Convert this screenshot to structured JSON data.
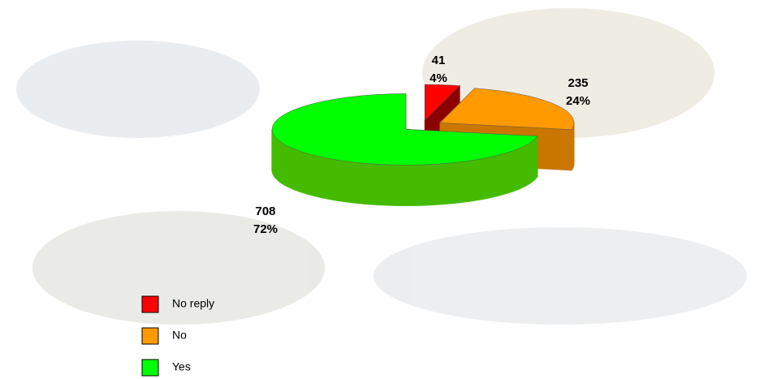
{
  "chart_data": {
    "type": "pie3d",
    "categories": [
      "No reply",
      "No",
      "Yes"
    ],
    "values": [
      41,
      235,
      708
    ],
    "percent_labels": [
      "4%",
      "24%",
      "72%"
    ],
    "colors": [
      "#ff0000",
      "#ff9900",
      "#00ff00"
    ],
    "side_colors": [
      "#8b0000",
      "#c97700",
      "#44bb00"
    ],
    "legend": true
  }
}
